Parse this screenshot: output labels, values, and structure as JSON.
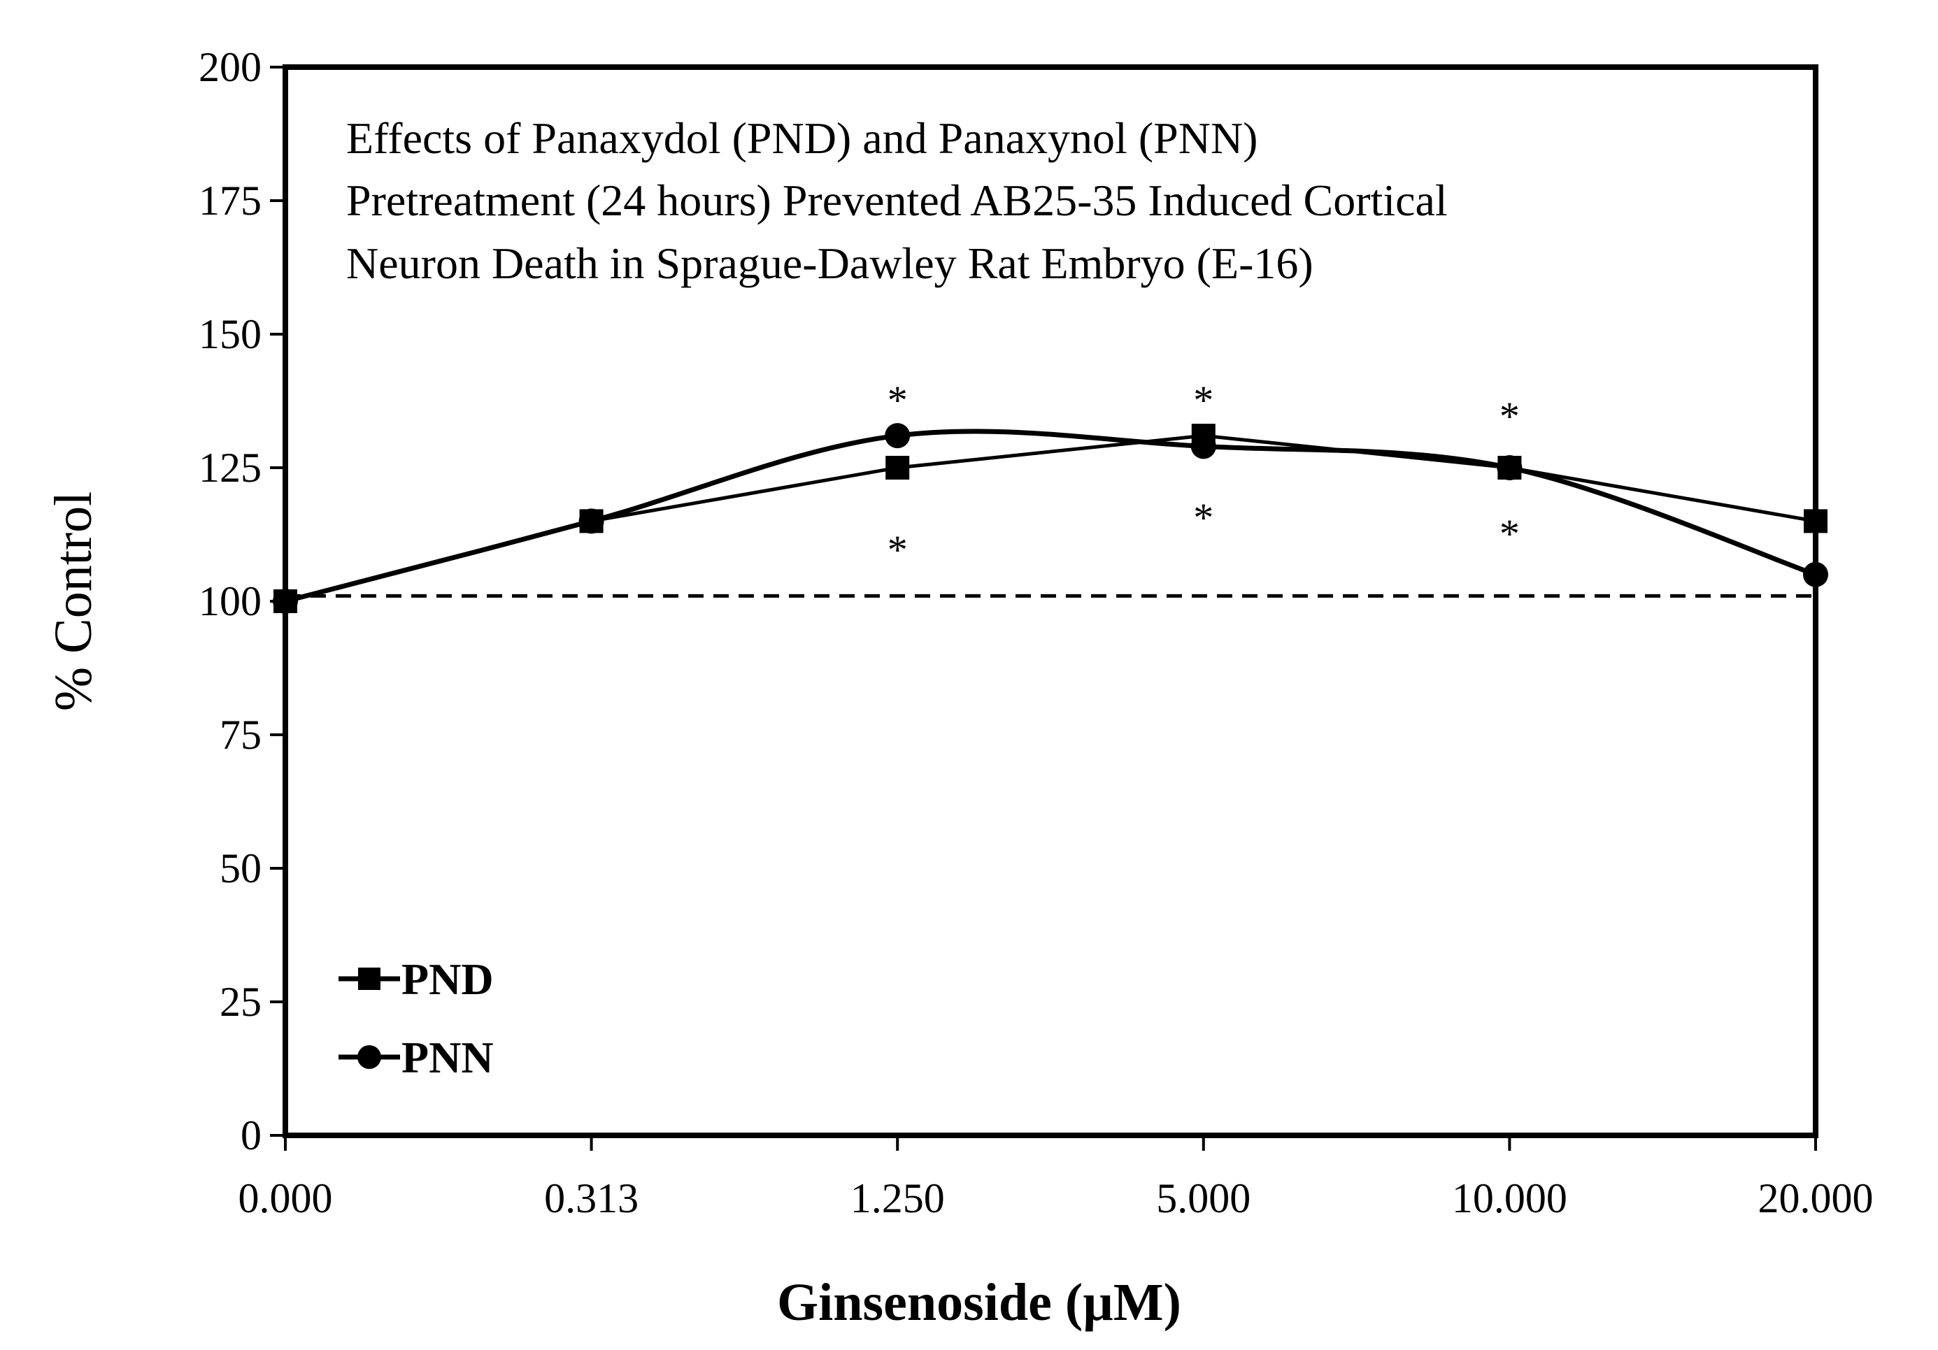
{
  "chart_data": {
    "type": "line",
    "title_lines": [
      "Effects of Panaxydol (PND) and Panaxynol (PNN)",
      "Pretreatment (24 hours) Prevented AB25-35 Induced Cortical",
      "Neuron Death in Sprague-Dawley Rat Embryo (E-16)"
    ],
    "xlabel": "Ginsenoside (µM)",
    "ylabel": "% Control",
    "categories": [
      "0.000",
      "0.313",
      "1.250",
      "5.000",
      "10.000",
      "20.000"
    ],
    "ylim": [
      0,
      200
    ],
    "yticks": [
      "0",
      "25",
      "50",
      "75",
      "100",
      "125",
      "150",
      "175",
      "200"
    ],
    "reference_line": 101,
    "series": [
      {
        "name": "PND",
        "marker": "square",
        "smooth": false,
        "values": [
          100,
          115,
          125,
          131,
          125,
          115
        ]
      },
      {
        "name": "PNN",
        "marker": "circle",
        "smooth": true,
        "values": [
          100,
          115,
          131,
          129,
          125,
          105
        ]
      }
    ],
    "significance": [
      {
        "category": "1.250",
        "value": 139,
        "label": "*"
      },
      {
        "category": "1.250",
        "value": 111,
        "label": "*"
      },
      {
        "category": "5.000",
        "value": 139,
        "label": "*"
      },
      {
        "category": "5.000",
        "value": 117,
        "label": "*"
      },
      {
        "category": "10.000",
        "value": 136,
        "label": "*"
      },
      {
        "category": "10.000",
        "value": 114,
        "label": "*"
      }
    ],
    "legend_position": "bottom-left"
  }
}
